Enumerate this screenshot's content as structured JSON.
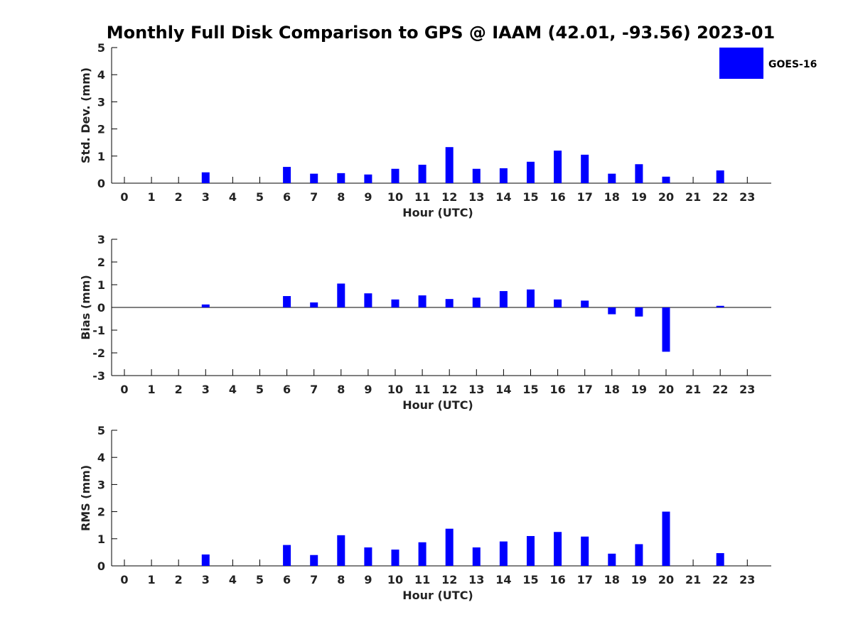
{
  "title": "Monthly Full Disk Comparison to GPS @ IAAM (42.01, -93.56) 2023-01",
  "legend": {
    "label": "GOES-16",
    "color": "#0000ff"
  },
  "chart_data": [
    {
      "type": "bar",
      "name": "std",
      "ylabel": "Std. Dev. (mm)",
      "xlabel": "Hour (UTC)",
      "ylim": [
        0,
        5
      ],
      "yticks": [
        "0",
        "1",
        "2",
        "3",
        "4",
        "5"
      ],
      "categories": [
        "0",
        "1",
        "2",
        "3",
        "4",
        "5",
        "6",
        "7",
        "8",
        "9",
        "10",
        "11",
        "12",
        "13",
        "14",
        "15",
        "16",
        "17",
        "18",
        "19",
        "20",
        "21",
        "22",
        "23"
      ],
      "series": [
        {
          "name": "GOES-16",
          "color": "#0000ff",
          "values": [
            null,
            null,
            null,
            0.4,
            null,
            null,
            0.6,
            0.35,
            0.37,
            0.32,
            0.53,
            0.68,
            1.33,
            0.53,
            0.55,
            0.79,
            1.2,
            1.05,
            0.35,
            0.7,
            0.24,
            null,
            0.47,
            null
          ]
        }
      ]
    },
    {
      "type": "bar",
      "name": "bias",
      "ylabel": "Bias (mm)",
      "xlabel": "Hour (UTC)",
      "ylim": [
        -3,
        3
      ],
      "yticks": [
        "-3",
        "-2",
        "-1",
        "0",
        "1",
        "2",
        "3"
      ],
      "zero_line": true,
      "categories": [
        "0",
        "1",
        "2",
        "3",
        "4",
        "5",
        "6",
        "7",
        "8",
        "9",
        "10",
        "11",
        "12",
        "13",
        "14",
        "15",
        "16",
        "17",
        "18",
        "19",
        "20",
        "21",
        "22",
        "23"
      ],
      "series": [
        {
          "name": "GOES-16",
          "color": "#0000ff",
          "values": [
            null,
            null,
            null,
            0.13,
            null,
            null,
            0.5,
            0.22,
            1.05,
            0.62,
            0.35,
            0.53,
            0.37,
            0.43,
            0.72,
            0.79,
            0.35,
            0.3,
            -0.3,
            -0.4,
            -1.95,
            null,
            0.07,
            null
          ]
        }
      ]
    },
    {
      "type": "bar",
      "name": "rms",
      "ylabel": "RMS (mm)",
      "xlabel": "Hour (UTC)",
      "ylim": [
        0,
        5
      ],
      "yticks": [
        "0",
        "1",
        "2",
        "3",
        "4",
        "5"
      ],
      "categories": [
        "0",
        "1",
        "2",
        "3",
        "4",
        "5",
        "6",
        "7",
        "8",
        "9",
        "10",
        "11",
        "12",
        "13",
        "14",
        "15",
        "16",
        "17",
        "18",
        "19",
        "20",
        "21",
        "22",
        "23"
      ],
      "series": [
        {
          "name": "GOES-16",
          "color": "#0000ff",
          "values": [
            null,
            null,
            null,
            0.42,
            null,
            null,
            0.77,
            0.4,
            1.13,
            0.68,
            0.6,
            0.87,
            1.37,
            0.68,
            0.9,
            1.1,
            1.25,
            1.08,
            0.45,
            0.8,
            2.0,
            null,
            0.47,
            null
          ]
        }
      ]
    }
  ]
}
